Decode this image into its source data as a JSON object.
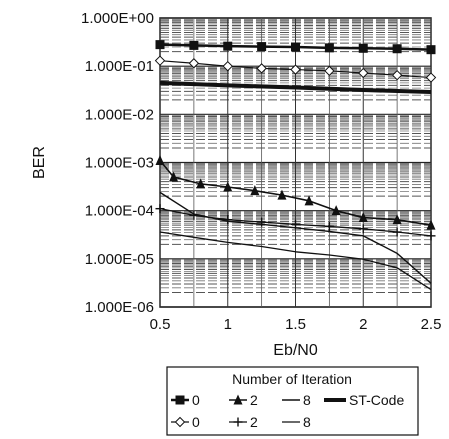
{
  "chart_data": {
    "type": "line",
    "title": "",
    "xlabel": "Eb/N0",
    "ylabel": "BER",
    "x_ticks": [
      "0.5",
      "1",
      "1.5",
      "2",
      "2.5"
    ],
    "y_ticks": [
      "1.000E+00",
      "1.000E-01",
      "1.000E-02",
      "1.000E-03",
      "1.000E-04",
      "1.000E-05",
      "1.000E-06"
    ],
    "xlim": [
      0.5,
      2.5
    ],
    "ylim": [
      1e-06,
      1
    ],
    "y_scale": "log",
    "grid": true,
    "legend_title": "Number of Iteration",
    "legend_position": "bottom",
    "series": [
      {
        "name": "0",
        "marker": "square",
        "color": "#111111",
        "x": [
          0.5,
          0.75,
          1.0,
          1.25,
          1.5,
          1.75,
          2.0,
          2.25,
          2.5
        ],
        "y": [
          0.28,
          0.27,
          0.26,
          0.255,
          0.25,
          0.24,
          0.235,
          0.23,
          0.22
        ]
      },
      {
        "name": "2",
        "marker": "triangle",
        "color": "#111111",
        "x": [
          0.5,
          0.6,
          0.8,
          1.0,
          1.2,
          1.4,
          1.6,
          1.8,
          2.0,
          2.25,
          2.5
        ],
        "y": [
          0.0011,
          0.0005,
          0.00036,
          0.00031,
          0.00026,
          0.00021,
          0.00016,
          0.0001,
          7.2e-05,
          6.5e-05,
          5e-05
        ]
      },
      {
        "name": "8",
        "marker": "none",
        "color": "#111111",
        "x": [
          0.5,
          0.75,
          1.0,
          1.25,
          1.5,
          1.75,
          2.0,
          2.25,
          2.5
        ],
        "y": [
          0.00024,
          8.5e-05,
          6e-05,
          5.2e-05,
          4.4e-05,
          3.7e-05,
          3e-05,
          1.3e-05,
          3.1e-06
        ]
      },
      {
        "name": "ST-Code",
        "marker": "none",
        "color": "#111111",
        "x": [
          0.5,
          1.0,
          1.5,
          2.0,
          2.5
        ],
        "y": [
          0.045,
          0.04,
          0.036,
          0.032,
          0.029
        ]
      },
      {
        "name": "0",
        "marker": "diamond-open",
        "color": "#111111",
        "x": [
          0.5,
          0.75,
          1.0,
          1.25,
          1.5,
          1.75,
          2.0,
          2.25,
          2.5
        ],
        "y": [
          0.13,
          0.115,
          0.1,
          0.09,
          0.085,
          0.08,
          0.072,
          0.065,
          0.058
        ]
      },
      {
        "name": "2",
        "marker": "cross",
        "color": "#111111",
        "x": [
          0.5,
          0.75,
          1.0,
          1.25,
          1.5,
          1.75,
          2.0,
          2.25,
          2.5
        ],
        "y": [
          0.00011,
          8e-05,
          6.5e-05,
          5.8e-05,
          5.2e-05,
          4.7e-05,
          4.2e-05,
          3.6e-05,
          3e-05
        ]
      },
      {
        "name": "8",
        "marker": "none",
        "color": "#111111",
        "x": [
          0.5,
          0.75,
          1.0,
          1.25,
          1.5,
          1.75,
          2.0,
          2.25,
          2.5
        ],
        "y": [
          3.6e-05,
          2.8e-05,
          2.2e-05,
          1.8e-05,
          1.4e-05,
          1.2e-05,
          9.8e-06,
          6.5e-06,
          2.3e-06
        ]
      }
    ]
  }
}
